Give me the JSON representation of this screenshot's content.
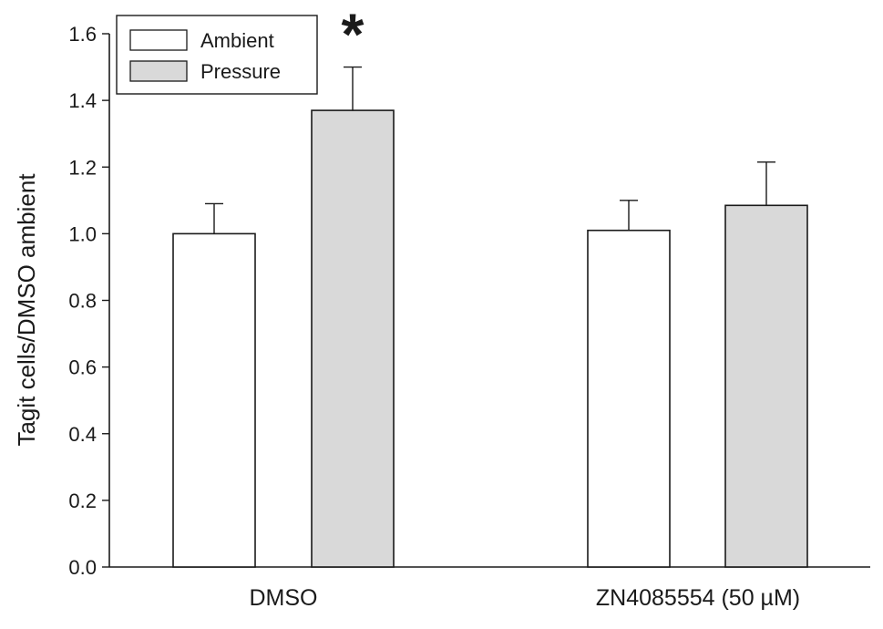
{
  "chart_data": {
    "type": "bar",
    "title": "",
    "xlabel": "",
    "ylabel": "Tagit cells/DMSO ambient",
    "ylim": [
      0,
      1.6
    ],
    "yticks": [
      "0.0",
      "0.2",
      "0.4",
      "0.6",
      "0.8",
      "1.0",
      "1.2",
      "1.4",
      "1.6"
    ],
    "categories": [
      "DMSO",
      "ZN4085554 (50 µM)"
    ],
    "series": [
      {
        "name": "Ambient",
        "values": [
          1.0,
          1.01
        ],
        "errors": [
          0.09,
          0.09
        ],
        "color": "#ffffff"
      },
      {
        "name": "Pressure",
        "values": [
          1.37,
          1.085
        ],
        "errors": [
          0.13,
          0.13
        ],
        "color": "#d9d9d9"
      }
    ],
    "legend_position": "top-left",
    "annotations": [
      {
        "text": "*",
        "category": "DMSO",
        "series": "Pressure"
      }
    ],
    "grid": false
  }
}
